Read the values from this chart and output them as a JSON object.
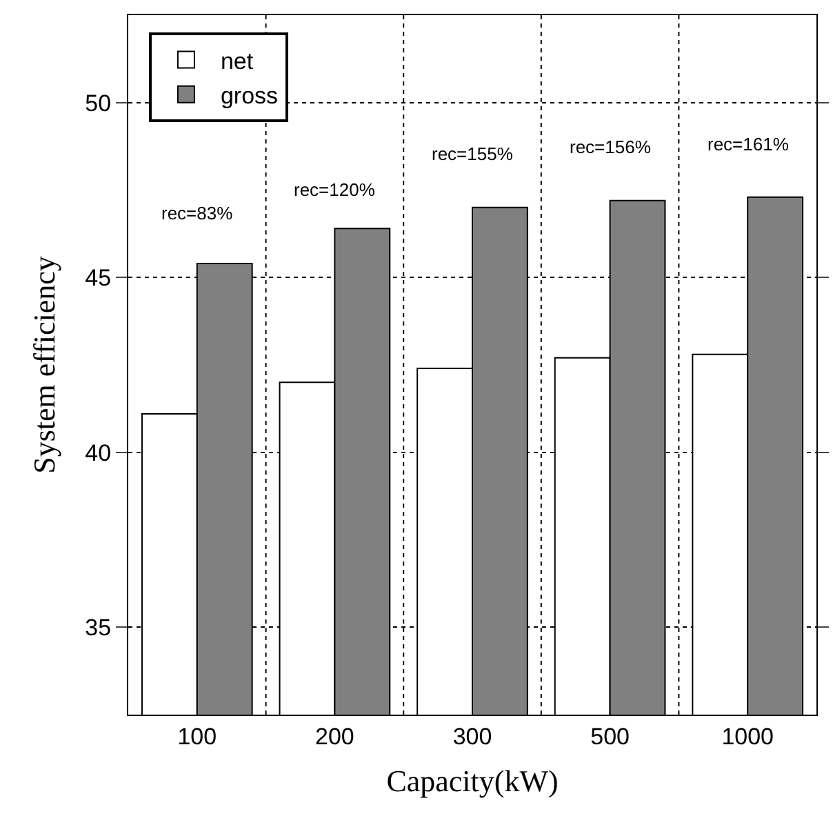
{
  "chart_data": {
    "type": "bar",
    "xlabel": "Capacity(kW)",
    "ylabel": "System efficiency",
    "categories": [
      "100",
      "200",
      "300",
      "500",
      "1000"
    ],
    "series": [
      {
        "name": "net",
        "color": "#ffffff",
        "values": [
          41.1,
          42.0,
          42.4,
          42.7,
          42.8
        ]
      },
      {
        "name": "gross",
        "color": "#808080",
        "values": [
          45.4,
          46.4,
          47.0,
          47.2,
          47.3
        ]
      }
    ],
    "annotations": [
      "rec=83%",
      "rec=120%",
      "rec=155%",
      "rec=156%",
      "rec=161%"
    ],
    "ylim": [
      32.5,
      52.5
    ],
    "yticks": [
      35,
      40,
      45,
      50
    ],
    "grid": true,
    "legend": "top left"
  }
}
